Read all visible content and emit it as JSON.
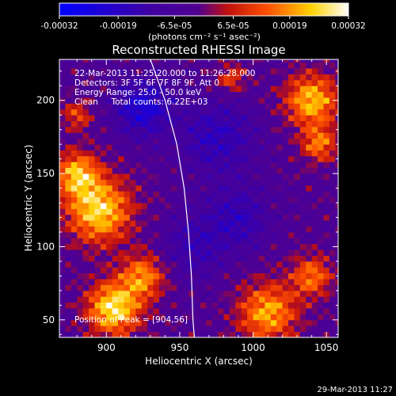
{
  "chart_data": {
    "type": "heatmap",
    "title": "Reconstructed RHESSI Image",
    "xlabel": "Heliocentric X (arcsec)",
    "ylabel": "Heliocentric Y (arcsec)",
    "xlim": [
      868,
      1058
    ],
    "ylim": [
      38,
      228
    ],
    "x_ticks": [
      900,
      950,
      1000,
      1050
    ],
    "y_ticks": [
      50,
      100,
      150,
      200
    ],
    "colorbar": {
      "ticks": [
        "-0.00032",
        "-0.00019",
        "-6.5e-05",
        "6.5e-05",
        "0.00019",
        "0.00032"
      ],
      "tick_values": [
        -0.00032,
        -0.00019,
        -6.5e-05,
        6.5e-05,
        0.00019,
        0.00032
      ],
      "range": [
        -0.00032,
        0.00032
      ],
      "units": "(photons cm⁻² s⁻¹ asec⁻²)"
    },
    "annotations": [
      "22-Mar-2013 11:25:20.000 to 11:26:28.000",
      "Detectors: 3F 5F 6F 7F 8F 9F, Att 0",
      "Energy Range: 25.0 - 50.0 keV",
      "Clean     Total counts: 6.22E+03"
    ],
    "peak_label": "Position of Peak = [904,56]",
    "peak_position": [
      904,
      56
    ],
    "limb_curve": [
      [
        930,
        228
      ],
      [
        940,
        200
      ],
      [
        948,
        170
      ],
      [
        953,
        140
      ],
      [
        956,
        110
      ],
      [
        958,
        80
      ],
      [
        959,
        50
      ],
      [
        960,
        38
      ]
    ],
    "hot_regions": [
      {
        "x": 895,
        "y": 125,
        "r": 22,
        "v": 0.0003
      },
      {
        "x": 880,
        "y": 150,
        "r": 15,
        "v": 0.00025
      },
      {
        "x": 905,
        "y": 58,
        "r": 18,
        "v": 0.00032
      },
      {
        "x": 925,
        "y": 80,
        "r": 15,
        "v": 0.00022
      },
      {
        "x": 1040,
        "y": 200,
        "r": 18,
        "v": 0.00027
      },
      {
        "x": 1045,
        "y": 170,
        "r": 12,
        "v": 0.0002
      },
      {
        "x": 1010,
        "y": 55,
        "r": 20,
        "v": 0.00025
      },
      {
        "x": 1040,
        "y": 80,
        "r": 14,
        "v": 0.0002
      },
      {
        "x": 880,
        "y": 190,
        "r": 10,
        "v": 0.00015
      },
      {
        "x": 985,
        "y": 215,
        "r": 10,
        "v": 0.00015
      }
    ],
    "cold_regions": [
      {
        "x": 925,
        "y": 195,
        "r": 18,
        "v": -0.00019
      },
      {
        "x": 975,
        "y": 175,
        "r": 25,
        "v": -0.00013
      },
      {
        "x": 990,
        "y": 120,
        "r": 20,
        "v": -0.00012
      },
      {
        "x": 960,
        "y": 100,
        "r": 22,
        "v": -0.0001
      }
    ]
  },
  "footer_timestamp": "29-Mar-2013 11:27"
}
